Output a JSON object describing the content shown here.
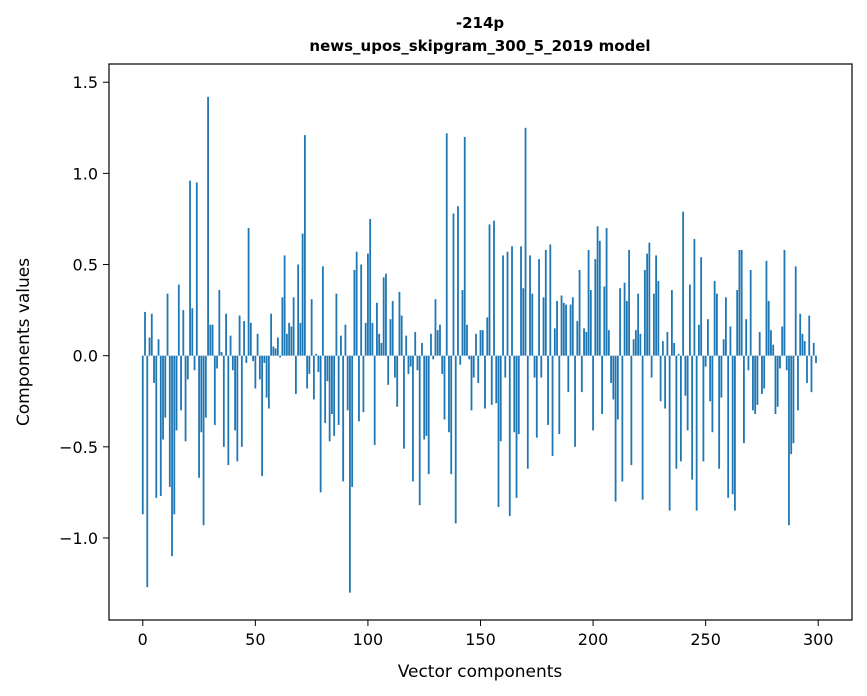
{
  "chart_data": {
    "type": "bar",
    "title": "-214p",
    "subtitle": "news_upos_skipgram_300_5_2019 model",
    "xlabel": "Vector components",
    "ylabel": "Components values",
    "xlim": [
      -15,
      315
    ],
    "ylim": [
      -1.45,
      1.6
    ],
    "xticks": [
      0,
      50,
      100,
      150,
      200,
      250,
      300
    ],
    "xtick_labels": [
      "0",
      "50",
      "100",
      "150",
      "200",
      "250",
      "300"
    ],
    "yticks": [
      -1.0,
      -0.5,
      0.0,
      0.5,
      1.0,
      1.5
    ],
    "ytick_labels": [
      "−1.0",
      "−0.5",
      "0.0",
      "0.5",
      "1.0",
      "1.5"
    ],
    "bar_color": "#1f77b4",
    "grid": false,
    "x": "0..299",
    "values": [
      -0.87,
      0.24,
      -1.27,
      0.1,
      0.23,
      -0.15,
      -0.78,
      0.09,
      -0.77,
      -0.46,
      -0.34,
      0.34,
      -0.72,
      -1.1,
      -0.87,
      -0.41,
      0.39,
      -0.3,
      0.25,
      -0.47,
      -0.13,
      0.96,
      0.26,
      -0.08,
      0.95,
      -0.67,
      -0.42,
      -0.93,
      -0.34,
      1.42,
      0.17,
      0.17,
      -0.38,
      -0.07,
      0.36,
      0.02,
      -0.5,
      0.23,
      -0.6,
      0.11,
      -0.08,
      -0.41,
      -0.58,
      0.22,
      -0.5,
      0.19,
      -0.04,
      0.7,
      0.18,
      -0.03,
      -0.18,
      0.12,
      -0.13,
      -0.66,
      -0.04,
      -0.23,
      -0.29,
      0.23,
      0.05,
      0.04,
      0.1,
      -0.01,
      0.32,
      0.55,
      0.12,
      0.18,
      0.16,
      0.32,
      -0.21,
      0.5,
      0.18,
      0.67,
      1.21,
      -0.18,
      -0.1,
      0.31,
      -0.24,
      0.01,
      -0.09,
      -0.75,
      0.49,
      -0.37,
      -0.14,
      -0.47,
      -0.32,
      -0.44,
      0.34,
      -0.38,
      0.11,
      -0.69,
      0.17,
      -0.3,
      -1.3,
      -0.72,
      0.47,
      0.57,
      -0.36,
      0.5,
      -0.31,
      0.18,
      0.56,
      0.75,
      0.18,
      -0.49,
      0.29,
      0.12,
      0.07,
      0.43,
      0.45,
      -0.16,
      0.2,
      0.3,
      -0.12,
      -0.28,
      0.35,
      0.22,
      -0.51,
      0.11,
      -0.1,
      -0.06,
      -0.69,
      0.13,
      -0.08,
      -0.82,
      0.07,
      -0.46,
      -0.44,
      -0.65,
      0.12,
      -0.02,
      0.31,
      0.14,
      0.17,
      -0.1,
      -0.35,
      1.22,
      -0.42,
      -0.65,
      0.78,
      -0.92,
      0.82,
      -0.05,
      0.36,
      1.2,
      0.17,
      -0.02,
      -0.3,
      -0.12,
      0.12,
      -0.15,
      0.14,
      0.14,
      -0.29,
      0.21,
      0.72,
      -0.27,
      0.74,
      -0.26,
      -0.83,
      -0.47,
      0.55,
      -0.12,
      0.57,
      -0.88,
      0.6,
      -0.42,
      -0.78,
      -0.43,
      0.6,
      0.37,
      1.25,
      -0.62,
      0.55,
      0.34,
      -0.12,
      -0.45,
      0.53,
      -0.12,
      0.32,
      0.58,
      -0.38,
      0.61,
      -0.55,
      0.15,
      0.3,
      -0.43,
      0.33,
      0.29,
      0.28,
      -0.2,
      0.28,
      0.32,
      -0.5,
      0.19,
      0.47,
      -0.2,
      0.15,
      0.13,
      0.58,
      0.36,
      -0.41,
      0.53,
      0.71,
      0.63,
      -0.32,
      0.38,
      0.7,
      0.14,
      -0.15,
      -0.24,
      -0.8,
      -0.35,
      0.37,
      -0.69,
      0.4,
      0.3,
      0.58,
      -0.6,
      0.09,
      0.14,
      0.34,
      0.12,
      -0.79,
      0.47,
      0.56,
      0.62,
      -0.12,
      0.34,
      0.55,
      0.41,
      -0.25,
      0.08,
      -0.29,
      0.13,
      -0.85,
      0.36,
      0.07,
      -0.62,
      0.01,
      -0.58,
      0.79,
      -0.22,
      -0.41,
      0.39,
      -0.68,
      0.64,
      -0.85,
      0.17,
      0.54,
      -0.58,
      -0.06,
      0.2,
      -0.25,
      -0.42,
      0.41,
      0.34,
      -0.62,
      -0.23,
      0.09,
      0.32,
      -0.78,
      0.16,
      -0.76,
      -0.85,
      0.36,
      0.58,
      0.58,
      -0.48,
      0.2,
      -0.08,
      0.47,
      -0.3,
      -0.32,
      -0.27,
      0.13,
      -0.21,
      -0.18,
      0.52,
      0.3,
      0.14,
      0.06,
      -0.32,
      -0.28,
      -0.07,
      0.16,
      0.58,
      -0.08,
      -0.93,
      -0.54,
      -0.48,
      0.49,
      -0.3,
      0.23,
      0.12,
      0.08,
      -0.15,
      0.22,
      -0.2,
      0.07,
      -0.04
    ]
  }
}
